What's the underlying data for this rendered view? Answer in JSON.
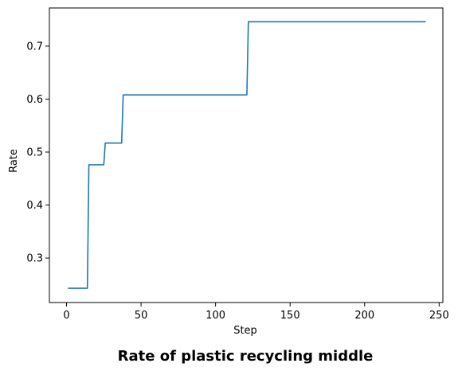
{
  "chart_data": {
    "type": "line",
    "title": "Rate of plastic recycling middle",
    "xlabel": "Step",
    "ylabel": "Rate",
    "xlim": [
      -11.5,
      252.5
    ],
    "ylim": [
      0.216,
      0.772
    ],
    "xticks": [
      0,
      50,
      100,
      150,
      200,
      250
    ],
    "yticks": [
      0.3,
      0.4,
      0.5,
      0.6,
      0.7
    ],
    "grid": false,
    "line_color": "#1f77b4",
    "series": [
      {
        "x": [
          1,
          14,
          15,
          25,
          26,
          37,
          38,
          121,
          122,
          241
        ],
        "y": [
          0.243,
          0.243,
          0.476,
          0.476,
          0.517,
          0.517,
          0.608,
          0.608,
          0.746,
          0.746
        ]
      }
    ]
  }
}
